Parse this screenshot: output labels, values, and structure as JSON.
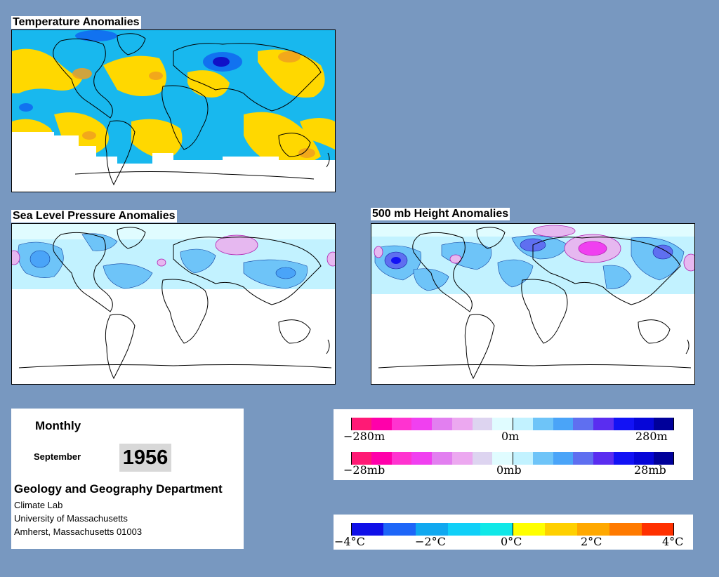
{
  "panels": {
    "temperature": {
      "title": "Temperature Anomalies"
    },
    "slp": {
      "title": "Sea Level Pressure Anomalies"
    },
    "height": {
      "title": "500 mb Height Anomalies"
    }
  },
  "info": {
    "frequency": "Monthly",
    "month": "September",
    "year": "1956",
    "department": "Geology and Geography Department",
    "address_lines": [
      "Climate Lab",
      "University of Massachusetts",
      "Amherst, Massachusetts 01003"
    ]
  },
  "legend_pressure": {
    "colors": [
      "#ff1a75",
      "#ff00aa",
      "#ff33d0",
      "#f040f0",
      "#e27ff0",
      "#eca8f0",
      "#ddd4f0",
      "#e0fcff",
      "#c2f2ff",
      "#6ec4f8",
      "#4aa4f8",
      "#5f6ff0",
      "#5a2df0",
      "#1212f5",
      "#0606d8",
      "#00009a"
    ],
    "height_labels": [
      "−280m",
      "0m",
      "280m"
    ],
    "pressure_labels": [
      "−28mb",
      "0mb",
      "28mb"
    ]
  },
  "legend_temperature": {
    "colors": [
      "#1010e8",
      "#1e66f8",
      "#10a8f0",
      "#10d0f8",
      "#10e8e8",
      "#ffff00",
      "#ffd000",
      "#ffa800",
      "#ff7a00",
      "#ff3000"
    ],
    "labels": [
      "−4°C",
      "−2°C",
      "0°C",
      "2°C",
      "4°C"
    ]
  }
}
